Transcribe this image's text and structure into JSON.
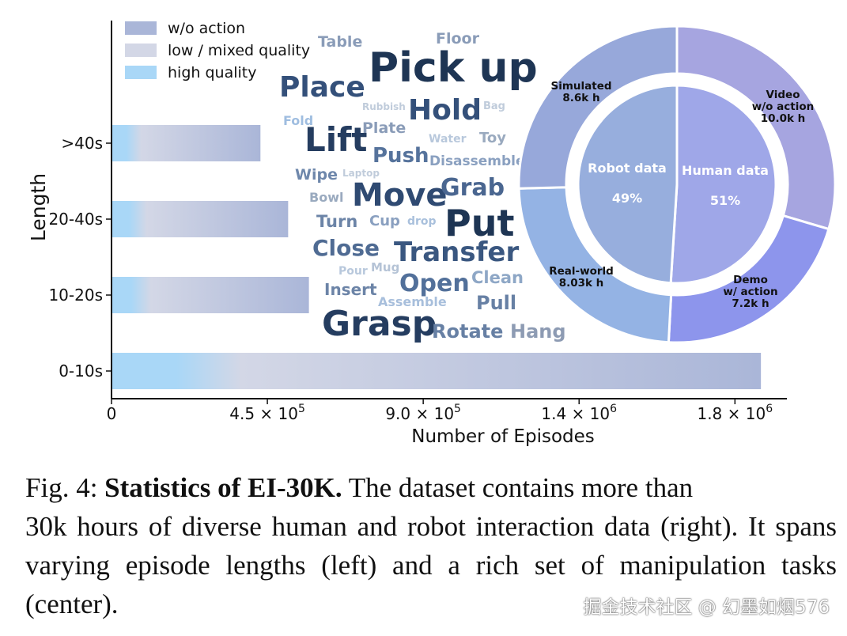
{
  "chart_data": [
    {
      "type": "bar",
      "orientation": "horizontal",
      "title": "",
      "xlabel": "Number of Episodes",
      "ylabel": "Length",
      "categories": [
        "0-10s",
        "10-20s",
        "20-40s",
        ">40s"
      ],
      "values": [
        1875000,
        570000,
        510000,
        430000
      ],
      "xlim": [
        0,
        1950000
      ],
      "x_ticks": [
        {
          "value": 0,
          "base": "0",
          "exp": ""
        },
        {
          "value": 450000,
          "base": "4.5 × 10",
          "exp": "5"
        },
        {
          "value": 900000,
          "base": "9.0 × 10",
          "exp": "5"
        },
        {
          "value": 1350000,
          "base": "1.4 × 10",
          "exp": "6"
        },
        {
          "value": 1800000,
          "base": "1.8 × 10",
          "exp": "6"
        }
      ],
      "legend": {
        "position": "top-left",
        "items": [
          {
            "label": "w/o action",
            "color": "#aab6d8"
          },
          {
            "label": "low / mixed quality",
            "color": "#d3d7e6"
          },
          {
            "label": "high quality",
            "color": "#a9d7f7"
          }
        ]
      },
      "gradient": {
        "high_quality": "#a9d7f7",
        "low_mixed": "#d3d7e6",
        "wo_action": "#aab6d8"
      }
    },
    {
      "type": "pie",
      "style": "nested-donut",
      "inner": [
        {
          "label": "Robot data",
          "percent": "49%",
          "value": 49,
          "color": "#97aedd"
        },
        {
          "label": "Human data",
          "percent": "51%",
          "value": 51,
          "color": "#9fa7e8"
        }
      ],
      "outer": [
        {
          "name": "Simulated",
          "value_text": "8.6k h",
          "hours": 8.6,
          "color": "#97a8da"
        },
        {
          "name": "Real-world",
          "value_text": "8.03k h",
          "hours": 8.03,
          "color": "#94b3e4"
        },
        {
          "name": "Demo\nw/ action",
          "value_text": "7.2k h",
          "hours": 7.2,
          "color": "#8d95ec"
        },
        {
          "name": "Video\nw/o action",
          "value_text": "10.0k h",
          "hours": 10.0,
          "color": "#a6a5e0"
        }
      ]
    }
  ],
  "word_cloud": [
    {
      "text": "Pick up",
      "size": 52,
      "color": "#1e3554",
      "weight": "bold"
    },
    {
      "text": "Put",
      "size": 46,
      "color": "#1e3554",
      "weight": "bold"
    },
    {
      "text": "Grasp",
      "size": 44,
      "color": "#253d60",
      "weight": "bold"
    },
    {
      "text": "Lift",
      "size": 42,
      "color": "#253d60",
      "weight": "bold"
    },
    {
      "text": "Move",
      "size": 40,
      "color": "#2f4a72",
      "weight": "bold"
    },
    {
      "text": "Place",
      "size": 36,
      "color": "#34507a",
      "weight": "bold"
    },
    {
      "text": "Hold",
      "size": 36,
      "color": "#34507a",
      "weight": "bold"
    },
    {
      "text": "Transfer",
      "size": 34,
      "color": "#3a5780",
      "weight": "bold"
    },
    {
      "text": "Grab",
      "size": 30,
      "color": "#4a6690",
      "weight": "bold"
    },
    {
      "text": "Close",
      "size": 28,
      "color": "#4f6b93",
      "weight": "bold"
    },
    {
      "text": "Open",
      "size": 30,
      "color": "#52709a",
      "weight": "bold"
    },
    {
      "text": "Push",
      "size": 26,
      "color": "#56739c",
      "weight": "bold"
    },
    {
      "text": "Pull",
      "size": 24,
      "color": "#6780a4",
      "weight": "bold"
    },
    {
      "text": "Rotate",
      "size": 24,
      "color": "#6780a4",
      "weight": "bold"
    },
    {
      "text": "Hang",
      "size": 24,
      "color": "#8d9bb3",
      "weight": "bold"
    },
    {
      "text": "Clean",
      "size": 21,
      "color": "#8ea7c6",
      "weight": "bold"
    },
    {
      "text": "Insert",
      "size": 20,
      "color": "#6c84a7",
      "weight": "bold"
    },
    {
      "text": "Turn",
      "size": 21,
      "color": "#6c84a7",
      "weight": "bold"
    },
    {
      "text": "Wipe",
      "size": 19,
      "color": "#6e87ab",
      "weight": "bold"
    },
    {
      "text": "Plate",
      "size": 19,
      "color": "#8a9cb8",
      "weight": "bold"
    },
    {
      "text": "Table",
      "size": 19,
      "color": "#8a9cb8",
      "weight": "bold"
    },
    {
      "text": "Floor",
      "size": 19,
      "color": "#8a9cb8",
      "weight": "bold"
    },
    {
      "text": "Toy",
      "size": 18,
      "color": "#9aaabf",
      "weight": "bold"
    },
    {
      "text": "Disassemble",
      "size": 17,
      "color": "#8aa0c0",
      "weight": "bold"
    },
    {
      "text": "Cup",
      "size": 18,
      "color": "#8aa0c0",
      "weight": "bold"
    },
    {
      "text": "Bowl",
      "size": 16,
      "color": "#9aaabf",
      "weight": "bold"
    },
    {
      "text": "Fold",
      "size": 16,
      "color": "#9fbde0",
      "weight": "bold"
    },
    {
      "text": "Assemble",
      "size": 16,
      "color": "#a8bfdc",
      "weight": "bold"
    },
    {
      "text": "Mug",
      "size": 15,
      "color": "#b5c3d6",
      "weight": "bold"
    },
    {
      "text": "Pour",
      "size": 14,
      "color": "#b8c8dc",
      "weight": "bold"
    },
    {
      "text": "Water",
      "size": 14,
      "color": "#b8c8dc",
      "weight": "bold"
    },
    {
      "text": "drop",
      "size": 14,
      "color": "#a9c0dc",
      "weight": "bold"
    },
    {
      "text": "Bag",
      "size": 13,
      "color": "#c0ccdb",
      "weight": "bold"
    },
    {
      "text": "Rubbish",
      "size": 12,
      "color": "#c0ccdb",
      "weight": "bold"
    },
    {
      "text": "Laptop",
      "size": 12,
      "color": "#c0ccdb",
      "weight": "bold"
    }
  ],
  "caption": {
    "label": "Fig. 4:",
    "title": "Statistics of EI-30K.",
    "body_first": "The dataset contains more than",
    "body_rest": "30k hours of diverse human and robot interaction data (right). It spans varying episode lengths (left) and a rich set of manipulation tasks (center)."
  },
  "watermark": "掘金技术社区 @ 幻墨如烟576"
}
